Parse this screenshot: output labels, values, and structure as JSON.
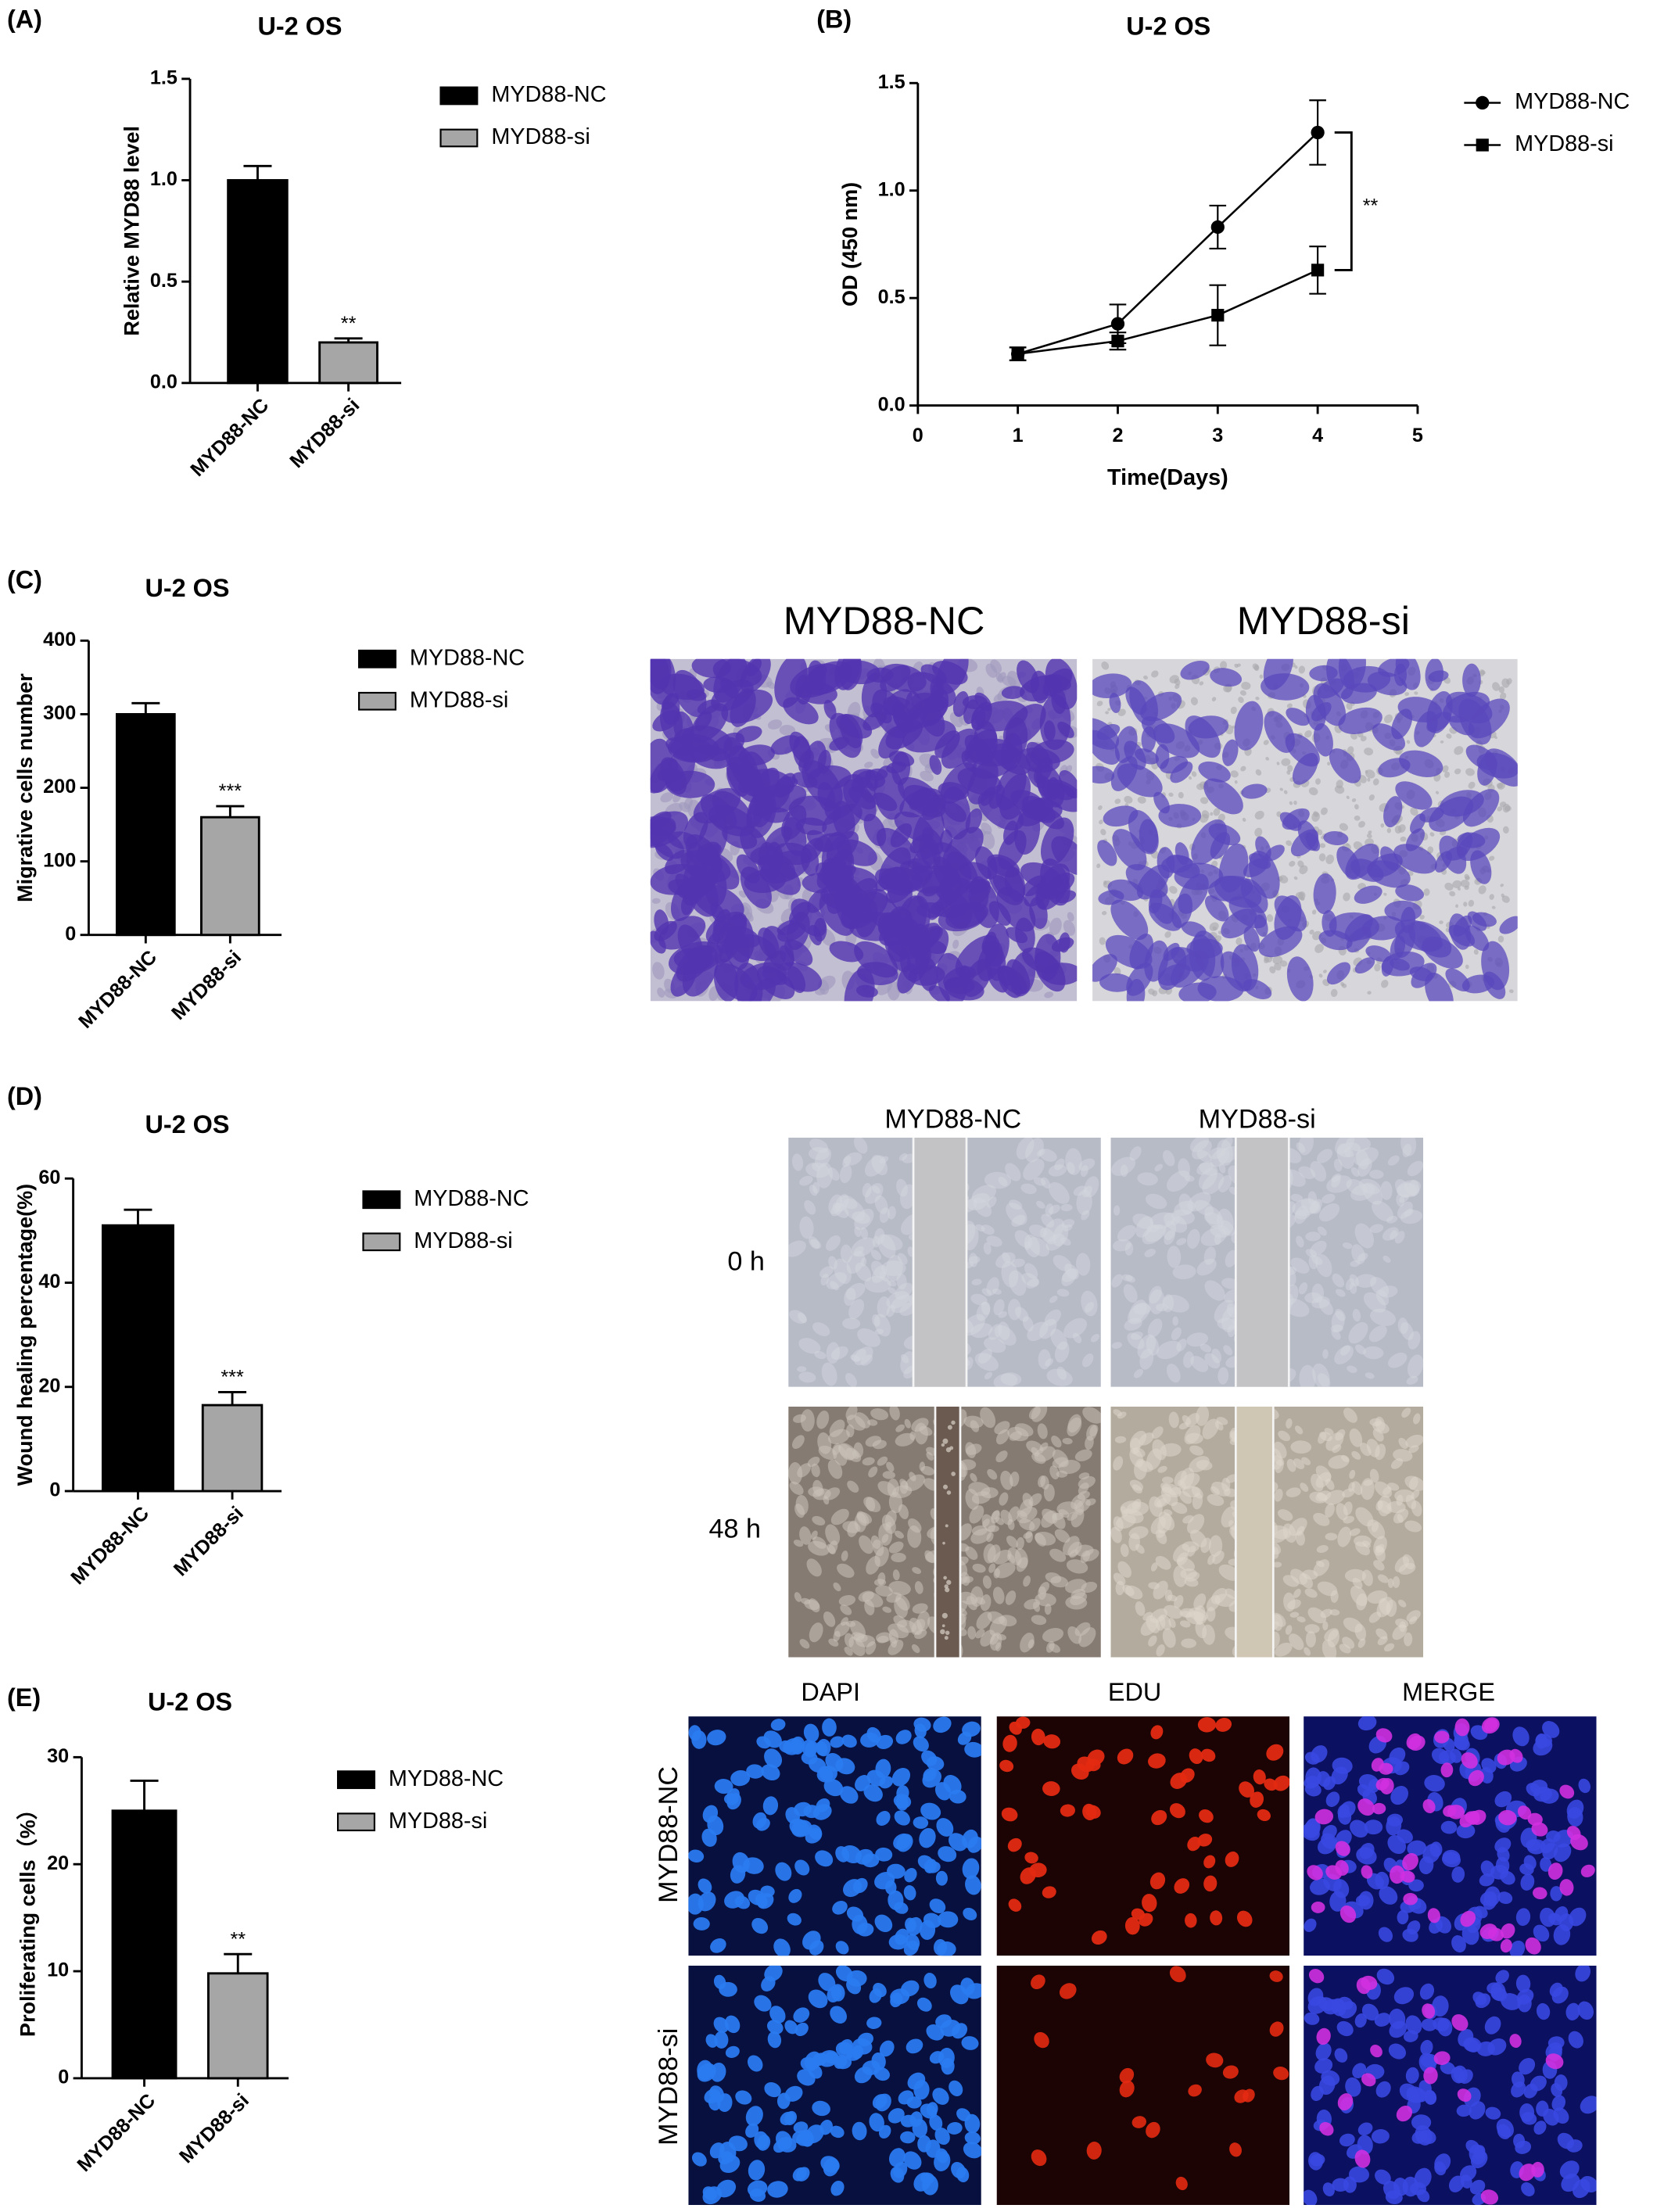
{
  "chart_data": [
    {
      "type": "bar",
      "panel": "(A)",
      "title": "U-2 OS",
      "y_label": "Relative MYD88 level",
      "categories": [
        "MYD88-NC",
        "MYD88-si"
      ],
      "values": [
        1.0,
        0.2
      ],
      "errors": [
        0.07,
        0.02
      ],
      "colors": [
        "#000000",
        "#a6a6a6"
      ],
      "significance": "**",
      "ylim": [
        0,
        1.5
      ],
      "yticks": [
        {
          "value": 0,
          "label": "0.0"
        },
        0.5,
        {
          "value": 1,
          "label": "1.0"
        },
        1.5
      ]
    },
    {
      "type": "line",
      "panel": "(B)",
      "title": "U-2 OS",
      "y_label": "OD (450 nm)",
      "x_label": "Time(Days)",
      "x": [
        1,
        2,
        3,
        4
      ],
      "series": [
        {
          "name": "MYD88-NC",
          "color": "#000000",
          "marker": "circle",
          "values": [
            0.24,
            0.38,
            0.83,
            1.27
          ],
          "errors": [
            0.03,
            0.09,
            0.1,
            0.15
          ]
        },
        {
          "name": "MYD88-si",
          "color": "#000000",
          "marker": "square",
          "values": [
            0.24,
            0.3,
            0.42,
            0.63
          ],
          "errors": [
            0.03,
            0.04,
            0.14,
            0.11
          ]
        }
      ],
      "significance": "**",
      "xlim": [
        0,
        5
      ],
      "xticks": [
        0,
        1,
        2,
        3,
        4,
        5
      ],
      "ylim": [
        0,
        1.5
      ],
      "yticks": [
        {
          "value": 0,
          "label": "0.0"
        },
        0.5,
        {
          "value": 1,
          "label": "1.0"
        },
        1.5
      ]
    },
    {
      "type": "bar",
      "panel": "(C)",
      "title": "U-2 OS",
      "y_label": "Migrative cells number",
      "categories": [
        "MYD88-NC",
        "MYD88-si"
      ],
      "values": [
        300,
        160
      ],
      "errors": [
        15,
        15
      ],
      "colors": [
        "#000000",
        "#a6a6a6"
      ],
      "significance": "***",
      "ylim": [
        0,
        400
      ],
      "yticks": [
        0,
        100,
        200,
        300,
        400
      ]
    },
    {
      "type": "bar",
      "panel": "(D)",
      "title": "U-2 OS",
      "y_label": "Wound healing percentage(%)",
      "categories": [
        "MYD88-NC",
        "MYD88-si"
      ],
      "values": [
        51,
        16.5
      ],
      "errors": [
        3,
        2.5
      ],
      "colors": [
        "#000000",
        "#a6a6a6"
      ],
      "significance": "***",
      "ylim": [
        0,
        60
      ],
      "yticks": [
        0,
        20,
        40,
        60
      ]
    },
    {
      "type": "bar",
      "panel": "(E)",
      "title": "U-2 OS",
      "y_label": "Proliferating cells（%）",
      "categories": [
        "MYD88-NC",
        "MYD88-si"
      ],
      "values": [
        25,
        9.8
      ],
      "errors": [
        2.8,
        1.8
      ],
      "colors": [
        "#000000",
        "#a6a6a6"
      ],
      "significance": "**",
      "ylim": [
        0,
        30
      ],
      "yticks": [
        0,
        10,
        20,
        30
      ]
    }
  ],
  "micrographs": {
    "transwell": {
      "columns": [
        "MYD88-NC",
        "MYD88-si"
      ]
    },
    "wound": {
      "columns": [
        "MYD88-NC",
        "MYD88-si"
      ],
      "rows": [
        "0 h",
        "48 h"
      ]
    },
    "edu": {
      "columns": [
        "DAPI",
        "EDU",
        "MERGE"
      ],
      "rows": [
        "MYD88-NC",
        "MYD88-si"
      ]
    }
  }
}
